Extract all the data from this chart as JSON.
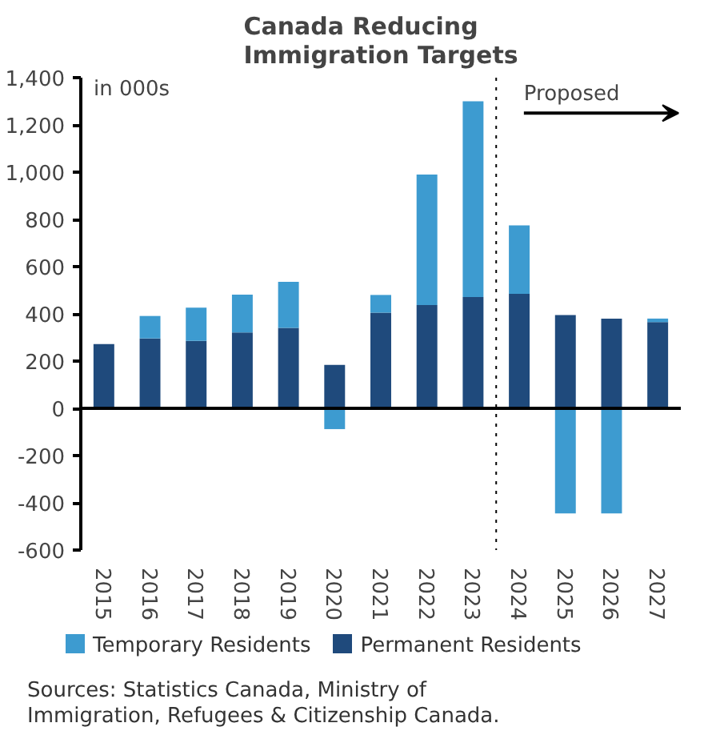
{
  "chart_data": {
    "type": "bar",
    "title": "Canada Reducing\nImmigration Targets",
    "stacked": true,
    "x": [
      2015,
      2016,
      2017,
      2018,
      2019,
      2020,
      2021,
      2022,
      2023,
      2024,
      2025,
      2026,
      2027
    ],
    "series": [
      {
        "name": "Permanent Residents",
        "color": "#1f4a7c",
        "values": [
          272,
          296,
          286,
          321,
          341,
          184,
          405,
          437,
          471,
          485,
          395,
          380,
          365
        ]
      },
      {
        "name": "Temporary Residents",
        "color": "#3d9bd0",
        "values": [
          0,
          95,
          140,
          160,
          195,
          -88,
          75,
          553,
          829,
          290,
          -445,
          -445,
          15
        ]
      }
    ],
    "xlim": [
      2014.5,
      2027.5
    ],
    "xticks": [
      2015,
      2016,
      2017,
      2018,
      2019,
      2020,
      2021,
      2022,
      2023,
      2024,
      2025,
      2026,
      2027
    ],
    "ylim": [
      -600,
      1400
    ],
    "yticks": [
      {
        "value": -600,
        "label": "-600"
      },
      {
        "value": -400,
        "label": "-400"
      },
      {
        "value": -200,
        "label": "-200"
      },
      0,
      200,
      400,
      600,
      800,
      {
        "value": 1000,
        "label": "1,000"
      },
      {
        "value": 1200,
        "label": "1,200"
      },
      {
        "value": 1400,
        "label": "1,400"
      }
    ],
    "ref_lines": [
      {
        "axis": "x",
        "value": 2023.5,
        "label": "Proposed",
        "line_style": "dotted",
        "color": "#000000"
      }
    ],
    "annotations": [
      "in 000s",
      "Sources: Statistics Canada, Ministry of Immigration, Refugees & Citizenship Canada."
    ],
    "legend": "bottom"
  }
}
